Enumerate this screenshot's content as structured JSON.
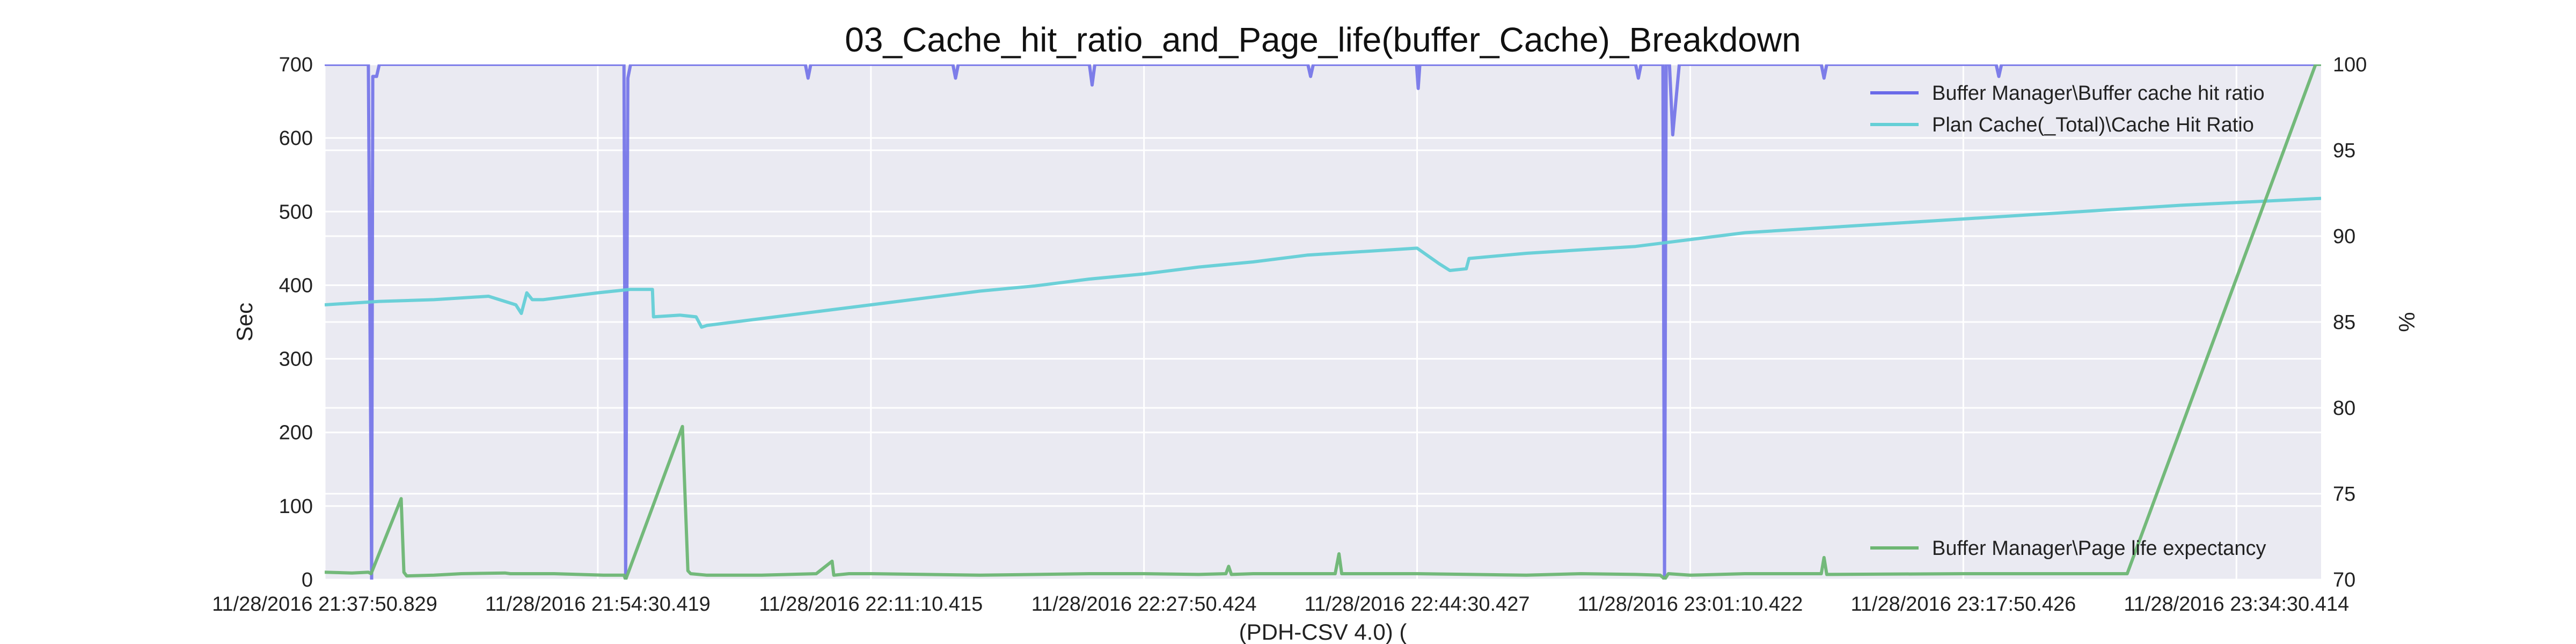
{
  "chart_data": {
    "type": "line",
    "title": "03_Cache_hit_ratio_and_Page_life(buffer_Cache)_Breakdown",
    "xlabel": "(PDH-CSV 4.0) (",
    "ylabel_left": "Sec",
    "ylabel_right": "%",
    "ylim_left": [
      0,
      700
    ],
    "ylim_right": [
      70,
      100
    ],
    "yticks_left": [
      "0",
      "100",
      "200",
      "300",
      "400",
      "500",
      "600",
      "700"
    ],
    "yticks_right": [
      "70",
      "75",
      "80",
      "85",
      "90",
      "95",
      "100"
    ],
    "xlim": [
      0,
      3655
    ],
    "x_tick_positions": [
      0,
      500,
      1000,
      1500,
      2000,
      2500,
      3000,
      3500
    ],
    "x_tick_labels": [
      "11/28/2016 21:37:50.829",
      "11/28/2016 21:54:30.419",
      "11/28/2016 22:11:10.415",
      "11/28/2016 22:27:50.424",
      "11/28/2016 22:44:30.427",
      "11/28/2016 23:01:10.422",
      "11/28/2016 23:17:50.426",
      "11/28/2016 23:34:30.414"
    ],
    "grid": true,
    "legend_placement": [
      "top-right",
      "bottom-right"
    ],
    "series": [
      {
        "name": "Buffer Manager\\Buffer cache hit ratio",
        "axis": "right",
        "color": "#6a6ae8",
        "x": [
          0,
          80,
          86,
          88,
          95,
          100,
          110,
          300,
          548,
          551,
          555,
          560,
          570,
          580,
          880,
          885,
          890,
          895,
          900,
          1000,
          1150,
          1155,
          1160,
          1300,
          1400,
          1405,
          1410,
          1500,
          1800,
          1805,
          1810,
          1900,
          1999,
          2002,
          2005,
          2400,
          2405,
          2410,
          2420,
          2450,
          2453,
          2456,
          2462,
          2468,
          2480,
          2700,
          2740,
          2745,
          2750,
          3000,
          3060,
          3065,
          3070,
          3655
        ],
        "y": [
          100,
          100,
          70,
          99.3,
          99.3,
          100,
          100,
          100,
          100,
          70,
          99.2,
          100,
          100,
          100,
          100,
          99.2,
          100,
          100,
          100,
          100,
          100,
          99.2,
          100,
          100,
          100,
          98.8,
          100,
          100,
          100,
          99.3,
          100,
          100,
          100,
          98.6,
          100,
          100,
          99.2,
          100,
          100,
          100,
          70,
          100,
          100,
          95.9,
          100,
          100,
          100,
          99.2,
          100,
          100,
          100,
          99.3,
          100,
          100
        ]
      },
      {
        "name": "Plan Cache(_Total)\\Cache Hit Ratio",
        "axis": "right",
        "color": "#64cfd6",
        "x": [
          0,
          100,
          200,
          300,
          350,
          360,
          370,
          380,
          400,
          500,
          560,
          600,
          602,
          650,
          680,
          690,
          700,
          800,
          900,
          1000,
          1100,
          1200,
          1300,
          1400,
          1500,
          1600,
          1700,
          1800,
          2000,
          2040,
          2060,
          2090,
          2095,
          2200,
          2400,
          2450,
          2500,
          2600,
          2800,
          3000,
          3200,
          3400,
          3655
        ],
        "y": [
          86,
          86.2,
          86.3,
          86.5,
          86.0,
          85.5,
          86.7,
          86.3,
          86.3,
          86.7,
          86.9,
          86.9,
          85.3,
          85.4,
          85.3,
          84.7,
          84.8,
          85.2,
          85.6,
          86.0,
          86.4,
          86.8,
          87.1,
          87.5,
          87.8,
          88.2,
          88.5,
          88.9,
          89.3,
          88.4,
          88.0,
          88.1,
          88.7,
          89.0,
          89.4,
          89.6,
          89.8,
          90.2,
          90.6,
          91.0,
          91.4,
          91.8,
          92.2
        ]
      },
      {
        "name": "Buffer Manager\\Page life expectancy",
        "axis": "left",
        "color": "#6db673",
        "x": [
          0,
          50,
          80,
          85,
          140,
          145,
          150,
          200,
          250,
          330,
          340,
          380,
          420,
          510,
          548,
          551,
          655,
          665,
          670,
          700,
          800,
          900,
          929,
          932,
          960,
          1000,
          1100,
          1200,
          1400,
          1500,
          1600,
          1650,
          1655,
          1660,
          1700,
          1800,
          1850,
          1857,
          1862,
          1870,
          2000,
          2100,
          2200,
          2300,
          2400,
          2445,
          2450,
          2453,
          2460,
          2500,
          2600,
          2700,
          2740,
          2745,
          2750,
          3000,
          3100,
          3200,
          3290,
          3300,
          3645,
          3655
        ],
        "y": [
          10,
          9,
          10,
          8,
          110,
          10,
          5,
          6,
          8,
          9,
          8,
          8,
          8,
          6,
          6,
          0,
          208,
          12,
          8,
          6,
          6,
          8,
          25,
          6,
          8,
          8,
          7,
          6,
          8,
          8,
          7,
          8,
          18,
          7,
          8,
          8,
          8,
          35,
          8,
          8,
          8,
          7,
          6,
          8,
          7,
          6,
          3,
          0,
          8,
          6,
          8,
          8,
          8,
          30,
          7,
          8,
          8,
          8,
          8,
          8,
          700,
          700
        ]
      }
    ]
  }
}
